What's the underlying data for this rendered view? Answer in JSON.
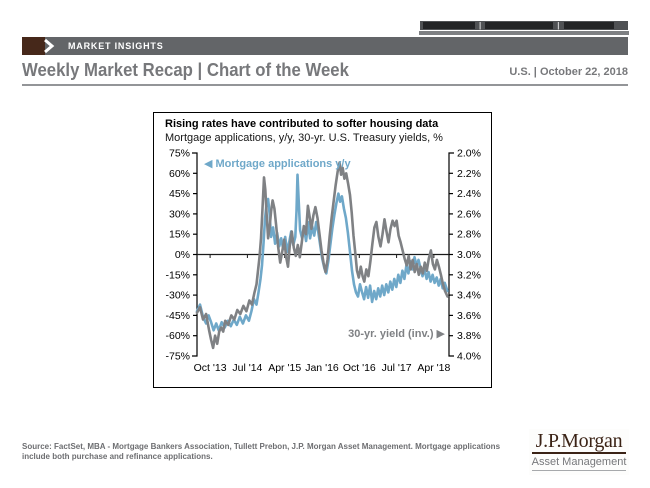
{
  "top_bar": {
    "separator": "|"
  },
  "brand_bar": {
    "label": "MARKET INSIGHTS"
  },
  "header": {
    "title": "Weekly Market Recap | Chart of the Week",
    "date": "U.S. | October 22, 2018"
  },
  "footer": {
    "line1": "Source: FactSet, MBA - Mortgage Bankers Association, Tullett Prebon, J.P. Morgan Asset Management. Mortgage applications",
    "line2": "include both purchase and refinance applications."
  },
  "logo": {
    "brand": "J.P.Morgan",
    "division": "Asset Management"
  },
  "colors": {
    "banner_gray": "#636568",
    "brand_brown": "#46281a",
    "header_gray": "#77787b",
    "accent_blue": "#6fa8c9",
    "line_gray": "#7f8184"
  },
  "chart_data": {
    "type": "line",
    "title": "Rising rates have contributed to softer housing data",
    "subtitle": "Mortgage applications, y/y, 30-yr. U.S. Treasury yields, %",
    "legend_left": {
      "arrow": "◀",
      "label": "Mortgage applications y/y"
    },
    "legend_right": {
      "label": "30-yr. yield (inv.)",
      "arrow": "▶"
    },
    "left_axis": {
      "ticks": [
        "75%",
        "60%",
        "45%",
        "30%",
        "15%",
        "0%",
        "-15%",
        "-30%",
        "-45%",
        "-60%",
        "-75%"
      ],
      "range": [
        75,
        -75
      ]
    },
    "right_axis": {
      "ticks": [
        "2.0%",
        "2.2%",
        "2.4%",
        "2.6%",
        "2.8%",
        "3.0%",
        "3.2%",
        "3.4%",
        "3.6%",
        "3.8%",
        "4.0%"
      ],
      "range": [
        2.0,
        4.0
      ],
      "inverted": true
    },
    "x_axis": {
      "tick_labels": [
        "Oct '13",
        "Jul '14",
        "Apr '15",
        "Jan '16",
        "Oct '16",
        "Jul '17",
        "Apr '18"
      ],
      "tick_positions_pct": [
        5.2,
        20,
        34.8,
        49.6,
        64.4,
        79.2,
        94
      ]
    },
    "series": [
      {
        "name": "Mortgage applications y/y",
        "color": "#6fa8c9",
        "axis": "left",
        "points": [
          [
            0,
            -42
          ],
          [
            1.2,
            -37
          ],
          [
            2.4,
            -46
          ],
          [
            3.6,
            -51
          ],
          [
            4.6,
            -45
          ],
          [
            5.6,
            -50
          ],
          [
            6.6,
            -56
          ],
          [
            7.6,
            -51
          ],
          [
            8.6,
            -56
          ],
          [
            9.8,
            -50
          ],
          [
            11,
            -54
          ],
          [
            12.2,
            -49
          ],
          [
            13.4,
            -53
          ],
          [
            14.6,
            -48
          ],
          [
            15.8,
            -52
          ],
          [
            17,
            -46
          ],
          [
            18.2,
            -51
          ],
          [
            19.4,
            -45
          ],
          [
            20.6,
            -49
          ],
          [
            21.6,
            -42
          ],
          [
            22.6,
            -33
          ],
          [
            23.6,
            -37
          ],
          [
            24.4,
            -28
          ],
          [
            25.2,
            -18
          ],
          [
            25.8,
            -8
          ],
          [
            26.4,
            8
          ],
          [
            27,
            26
          ],
          [
            27.6,
            38
          ],
          [
            28.2,
            41
          ],
          [
            28.8,
            30
          ],
          [
            29.4,
            13
          ],
          [
            30.2,
            20
          ],
          [
            31,
            8
          ],
          [
            31.8,
            16
          ],
          [
            32.6,
            6
          ],
          [
            33.4,
            12
          ],
          [
            34.2,
            4
          ],
          [
            35,
            13
          ],
          [
            35.8,
            2
          ],
          [
            36.6,
            9
          ],
          [
            37.4,
            17
          ],
          [
            38.2,
            7
          ],
          [
            39,
            13
          ],
          [
            39.5,
            32
          ],
          [
            39.9,
            59
          ],
          [
            40.4,
            38
          ],
          [
            40.9,
            18
          ],
          [
            41.7,
            12
          ],
          [
            42.5,
            19
          ],
          [
            43.3,
            10
          ],
          [
            44.1,
            24
          ],
          [
            44.9,
            12
          ],
          [
            45.7,
            21
          ],
          [
            46.5,
            14
          ],
          [
            47.3,
            24
          ],
          [
            48.1,
            17
          ],
          [
            48.9,
            7
          ],
          [
            49.7,
            -3
          ],
          [
            50.5,
            -10
          ],
          [
            51.3,
            -14
          ],
          [
            52.1,
            -5
          ],
          [
            52.9,
            7
          ],
          [
            53.7,
            19
          ],
          [
            54.5,
            29
          ],
          [
            55.3,
            38
          ],
          [
            56.1,
            45
          ],
          [
            56.8,
            39
          ],
          [
            57.5,
            43
          ],
          [
            58.3,
            34
          ],
          [
            59.1,
            27
          ],
          [
            59.9,
            16
          ],
          [
            60.7,
            2
          ],
          [
            61.5,
            -12
          ],
          [
            62.3,
            -22
          ],
          [
            63.1,
            -28
          ],
          [
            63.9,
            -31
          ],
          [
            64.7,
            -22
          ],
          [
            65.5,
            -28
          ],
          [
            66.3,
            -33
          ],
          [
            67.1,
            -24
          ],
          [
            67.9,
            -32
          ],
          [
            68.7,
            -23
          ],
          [
            69.5,
            -35
          ],
          [
            70.3,
            -27
          ],
          [
            71.1,
            -33
          ],
          [
            71.9,
            -25
          ],
          [
            72.7,
            -31
          ],
          [
            73.5,
            -23
          ],
          [
            74.3,
            -30
          ],
          [
            75.1,
            -22
          ],
          [
            75.9,
            -28
          ],
          [
            76.7,
            -20
          ],
          [
            77.5,
            -26
          ],
          [
            78.3,
            -18
          ],
          [
            79.1,
            -24
          ],
          [
            79.9,
            -15
          ],
          [
            80.7,
            -21
          ],
          [
            81.5,
            -12
          ],
          [
            82.3,
            -18
          ],
          [
            83.1,
            -8
          ],
          [
            83.9,
            -14
          ],
          [
            84.7,
            -5
          ],
          [
            85.5,
            -11
          ],
          [
            86.3,
            -2
          ],
          [
            87.1,
            -8
          ],
          [
            87.9,
            -4
          ],
          [
            88.7,
            -10
          ],
          [
            89.5,
            -16
          ],
          [
            90.3,
            -11
          ],
          [
            91.1,
            -18
          ],
          [
            91.9,
            -13
          ],
          [
            92.7,
            -20
          ],
          [
            93.5,
            -15
          ],
          [
            94.3,
            -21
          ],
          [
            95.1,
            -17
          ],
          [
            95.9,
            -23
          ],
          [
            96.7,
            -18
          ],
          [
            97.5,
            -25
          ],
          [
            98.3,
            -21
          ],
          [
            99.4,
            -27
          ]
        ]
      },
      {
        "name": "30-yr. yield (inv.)",
        "color": "#7f8184",
        "axis": "right",
        "points": [
          [
            0,
            -43
          ],
          [
            1.2,
            -39
          ],
          [
            2.4,
            -48
          ],
          [
            3.6,
            -44
          ],
          [
            4.8,
            -56
          ],
          [
            5.6,
            -63
          ],
          [
            6.4,
            -69
          ],
          [
            7.2,
            -60
          ],
          [
            8,
            -66
          ],
          [
            8.8,
            -57
          ],
          [
            9.6,
            -54
          ],
          [
            10.4,
            -57
          ],
          [
            11.2,
            -49
          ],
          [
            12.4,
            -52
          ],
          [
            13.6,
            -45
          ],
          [
            14.8,
            -48
          ],
          [
            16,
            -41
          ],
          [
            17.2,
            -44
          ],
          [
            18.4,
            -38
          ],
          [
            19.6,
            -42
          ],
          [
            20.8,
            -34
          ],
          [
            21.8,
            -37
          ],
          [
            22.8,
            -28
          ],
          [
            23.6,
            -22
          ],
          [
            24.2,
            -12
          ],
          [
            24.8,
            -2
          ],
          [
            25.4,
            12
          ],
          [
            26,
            34
          ],
          [
            26.6,
            57
          ],
          [
            27.1,
            48
          ],
          [
            27.6,
            30
          ],
          [
            28.2,
            12
          ],
          [
            28.8,
            20
          ],
          [
            29.4,
            32
          ],
          [
            30,
            40
          ],
          [
            30.7,
            34
          ],
          [
            31.4,
            22
          ],
          [
            32.2,
            6
          ],
          [
            33,
            -6
          ],
          [
            33.8,
            2
          ],
          [
            34.6,
            11
          ],
          [
            35.4,
            -2
          ],
          [
            36.1,
            -9
          ],
          [
            36.8,
            6
          ],
          [
            37.6,
            17
          ],
          [
            38.4,
            5
          ],
          [
            39.2,
            -1
          ],
          [
            40,
            7
          ],
          [
            40.8,
            -2
          ],
          [
            41.6,
            9
          ],
          [
            42.4,
            21
          ],
          [
            43.2,
            15
          ],
          [
            44,
            36
          ],
          [
            44.7,
            28
          ],
          [
            45.4,
            19
          ],
          [
            46.2,
            29
          ],
          [
            47,
            35
          ],
          [
            47.8,
            27
          ],
          [
            48.6,
            15
          ],
          [
            49.4,
            3
          ],
          [
            50.2,
            -6
          ],
          [
            51,
            -13
          ],
          [
            51.8,
            -4
          ],
          [
            52.6,
            13
          ],
          [
            53.4,
            27
          ],
          [
            54.2,
            39
          ],
          [
            55,
            51
          ],
          [
            55.8,
            61
          ],
          [
            56.6,
            68
          ],
          [
            57.2,
            59
          ],
          [
            57.8,
            64
          ],
          [
            58.5,
            56
          ],
          [
            59.2,
            60
          ],
          [
            60,
            52
          ],
          [
            60.7,
            44
          ],
          [
            61.4,
            31
          ],
          [
            62.1,
            14
          ],
          [
            62.8,
            1
          ],
          [
            63.5,
            -12
          ],
          [
            64.2,
            -17
          ],
          [
            65,
            -9
          ],
          [
            65.7,
            -16
          ],
          [
            66.4,
            -20
          ],
          [
            67.2,
            -11
          ],
          [
            68,
            -16
          ],
          [
            68.8,
            -5
          ],
          [
            69.6,
            8
          ],
          [
            70.4,
            20
          ],
          [
            71.2,
            24
          ],
          [
            72,
            13
          ],
          [
            72.8,
            6
          ],
          [
            73.6,
            15
          ],
          [
            74.4,
            26
          ],
          [
            75.2,
            17
          ],
          [
            76,
            9
          ],
          [
            76.8,
            19
          ],
          [
            77.6,
            25
          ],
          [
            78.4,
            21
          ],
          [
            79.2,
            25
          ],
          [
            80,
            14
          ],
          [
            80.8,
            9
          ],
          [
            81.6,
            3
          ],
          [
            82.4,
            -3
          ],
          [
            83.2,
            -8
          ],
          [
            84,
            -1
          ],
          [
            84.8,
            -11
          ],
          [
            85.6,
            -4
          ],
          [
            86.4,
            -13
          ],
          [
            87.2,
            -7
          ],
          [
            88,
            -15
          ],
          [
            88.8,
            -9
          ],
          [
            89.6,
            -14
          ],
          [
            90.4,
            -6
          ],
          [
            91.2,
            -12
          ],
          [
            92,
            -3
          ],
          [
            92.8,
            3
          ],
          [
            93.6,
            -7
          ],
          [
            94.4,
            -11
          ],
          [
            95.2,
            -4
          ],
          [
            96,
            -9
          ],
          [
            96.8,
            -15
          ],
          [
            97.6,
            -22
          ],
          [
            98.4,
            -27
          ],
          [
            99.4,
            -31
          ]
        ]
      }
    ]
  }
}
